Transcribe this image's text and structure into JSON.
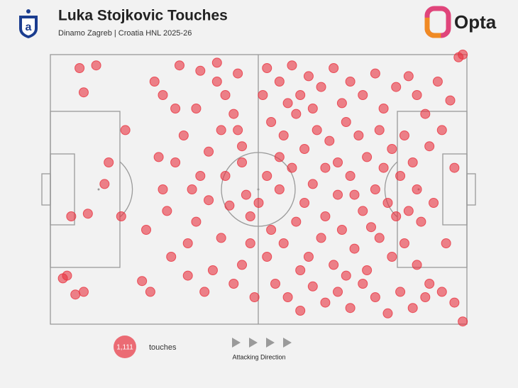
{
  "chart_data": {
    "type": "scatter",
    "title": "Luka Stojkovic Touches",
    "subtitle": "Dinamo Zagreb | Croatia HNL 2025-26",
    "brand": "Opta",
    "color": "#e8323f",
    "xlim": [
      0,
      100
    ],
    "ylim": [
      0,
      100
    ],
    "x": [
      7,
      11,
      8,
      5,
      3,
      8,
      6,
      4,
      9,
      14,
      13,
      18,
      23,
      22,
      24,
      17,
      27,
      30,
      32,
      29,
      33,
      35,
      36,
      38,
      40,
      42,
      44,
      45,
      46,
      47,
      43,
      41,
      39,
      37,
      44,
      46,
      48,
      49,
      31,
      36,
      40,
      45,
      34,
      27,
      30,
      38,
      42,
      46,
      33,
      48,
      26,
      35,
      41,
      25,
      28,
      52,
      55,
      58,
      60,
      62,
      65,
      68,
      70,
      72,
      75,
      78,
      80,
      83,
      86,
      88,
      90,
      93,
      96,
      98,
      53,
      56,
      59,
      61,
      64,
      67,
      69,
      71,
      74,
      76,
      79,
      82,
      85,
      87,
      91,
      94,
      97,
      52,
      55,
      58,
      61,
      63,
      66,
      69,
      72,
      75,
      78,
      81,
      84,
      86,
      89,
      92,
      95,
      53,
      56,
      59,
      62,
      65,
      68,
      70,
      73,
      76,
      79,
      82,
      85,
      88,
      91,
      94,
      97,
      99,
      99,
      54,
      57,
      60,
      63,
      66,
      69,
      72,
      75,
      78,
      81,
      84,
      87,
      90,
      51,
      57,
      63,
      66,
      73,
      77,
      80,
      83,
      71,
      60,
      55,
      88,
      50,
      52
    ],
    "y": [
      95,
      96,
      86,
      40,
      17,
      12,
      11,
      18,
      41,
      60,
      52,
      72,
      35,
      16,
      12,
      40,
      85,
      80,
      70,
      25,
      30,
      38,
      55,
      64,
      90,
      85,
      78,
      72,
      60,
      48,
      44,
      32,
      20,
      12,
      15,
      22,
      30,
      10,
      96,
      94,
      97,
      93,
      50,
      50,
      60,
      46,
      55,
      66,
      18,
      40,
      62,
      80,
      72,
      90,
      42,
      95,
      90,
      96,
      85,
      92,
      88,
      95,
      82,
      90,
      85,
      93,
      80,
      88,
      92,
      85,
      78,
      90,
      83,
      99,
      75,
      70,
      78,
      65,
      72,
      68,
      60,
      75,
      70,
      62,
      72,
      65,
      70,
      60,
      66,
      72,
      58,
      55,
      50,
      58,
      45,
      52,
      40,
      48,
      55,
      42,
      50,
      45,
      55,
      42,
      38,
      45,
      30,
      35,
      30,
      38,
      25,
      32,
      22,
      35,
      28,
      20,
      32,
      25,
      30,
      22,
      15,
      12,
      8,
      1,
      100,
      15,
      10,
      5,
      14,
      8,
      12,
      6,
      15,
      10,
      4,
      12,
      6,
      10,
      85,
      82,
      80,
      58,
      48,
      36,
      58,
      40,
      18,
      20,
      62,
      50,
      45,
      25
    ],
    "touch_count": {
      "value": 1111,
      "label": "1,111"
    },
    "touch_count_text": "touches",
    "direction_label": "Attacking Direction"
  }
}
